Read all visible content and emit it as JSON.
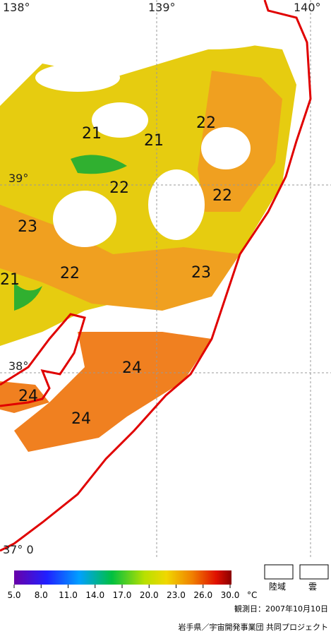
{
  "map": {
    "lon_labels": [
      "138°",
      "139°",
      "140°"
    ],
    "lat_labels": [
      "39°",
      "38°",
      "37° 0"
    ],
    "contour_labels": [
      "21",
      "21",
      "22",
      "22",
      "22",
      "23",
      "22",
      "23",
      "21",
      "24",
      "24",
      "24"
    ]
  },
  "colorbar": {
    "ticks": [
      "5.0",
      "8.0",
      "11.0",
      "14.0",
      "17.0",
      "20.0",
      "23.0",
      "26.0",
      "30.0"
    ],
    "unit": "°C"
  },
  "legend": {
    "land": "陸域",
    "cloud": "雲"
  },
  "footer": {
    "date": "観測日：2007年10月10日",
    "credit": "岩手県／宇宙開発事業団 共同プロジェクト"
  }
}
